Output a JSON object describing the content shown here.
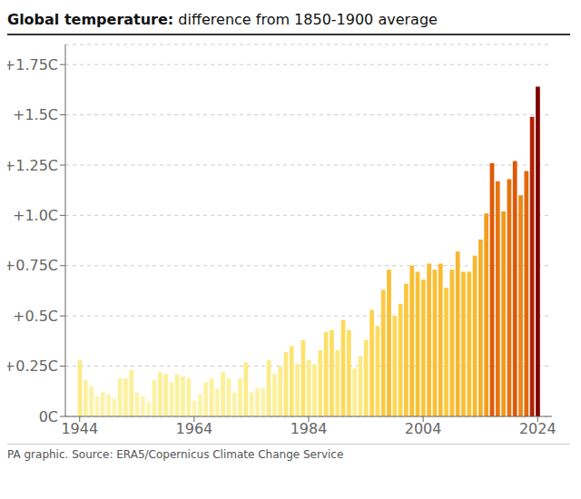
{
  "chart_data": {
    "type": "bar",
    "title": "Global temperature:",
    "subtitle": "difference from 1850-1900 average",
    "annotations": [
      "PA graphic. Source: ERA5/Copernicus Climate Change Service"
    ],
    "x": [
      1944,
      1945,
      1946,
      1947,
      1948,
      1949,
      1950,
      1951,
      1952,
      1953,
      1954,
      1955,
      1956,
      1957,
      1958,
      1959,
      1960,
      1961,
      1962,
      1963,
      1964,
      1965,
      1966,
      1967,
      1968,
      1969,
      1970,
      1971,
      1972,
      1973,
      1974,
      1975,
      1976,
      1977,
      1978,
      1979,
      1980,
      1981,
      1982,
      1983,
      1984,
      1985,
      1986,
      1987,
      1988,
      1989,
      1990,
      1991,
      1992,
      1993,
      1994,
      1995,
      1996,
      1997,
      1998,
      1999,
      2000,
      2001,
      2002,
      2003,
      2004,
      2005,
      2006,
      2007,
      2008,
      2009,
      2010,
      2011,
      2012,
      2013,
      2014,
      2015,
      2016,
      2017,
      2018,
      2019,
      2020,
      2021,
      2022,
      2023,
      2024
    ],
    "values": [
      0.28,
      0.18,
      0.15,
      0.1,
      0.12,
      0.11,
      0.09,
      0.19,
      0.19,
      0.23,
      0.12,
      0.1,
      0.07,
      0.18,
      0.22,
      0.21,
      0.17,
      0.21,
      0.2,
      0.19,
      0.08,
      0.11,
      0.17,
      0.19,
      0.14,
      0.22,
      0.19,
      0.12,
      0.19,
      0.27,
      0.12,
      0.14,
      0.14,
      0.28,
      0.21,
      0.25,
      0.32,
      0.35,
      0.26,
      0.38,
      0.28,
      0.26,
      0.33,
      0.42,
      0.43,
      0.33,
      0.48,
      0.43,
      0.24,
      0.3,
      0.38,
      0.53,
      0.45,
      0.63,
      0.73,
      0.5,
      0.56,
      0.66,
      0.75,
      0.72,
      0.68,
      0.76,
      0.73,
      0.76,
      0.64,
      0.73,
      0.82,
      0.72,
      0.72,
      0.8,
      0.88,
      1.01,
      1.26,
      1.17,
      1.02,
      1.18,
      1.27,
      1.1,
      1.22,
      1.49,
      1.64
    ],
    "colors": [
      "#fceb88",
      "#fcf1a0",
      "#fcf2a5",
      "#fcf4ae",
      "#fcf3aa",
      "#fcf3ac",
      "#fcf4b0",
      "#fcf19e",
      "#fcf19e",
      "#fcef96",
      "#fcf3aa",
      "#fcf4ae",
      "#fcf5b3",
      "#fcf1a0",
      "#fcf098",
      "#fcf09a",
      "#fcf2a2",
      "#fcf09a",
      "#fcf19c",
      "#fcf19e",
      "#fcf4b2",
      "#fcf3ac",
      "#fcf2a2",
      "#fcf19e",
      "#fcf3a7",
      "#fcf098",
      "#fcf19e",
      "#fcf3aa",
      "#fcf19e",
      "#fcec8b",
      "#fcf3aa",
      "#fcf3a7",
      "#fcf3a7",
      "#fceb88",
      "#fcf09a",
      "#fced90",
      "#fde87d",
      "#fde575",
      "#fced8e",
      "#fde36d",
      "#fceb88",
      "#fced8e",
      "#fde77a",
      "#fddf66",
      "#fdde64",
      "#fde77a",
      "#fed95a",
      "#fdde64",
      "#fcee93",
      "#fce983",
      "#fde36d",
      "#fed451",
      "#fddc60",
      "#fcca41",
      "#fabf33",
      "#fed756",
      "#fed24b",
      "#fcc73c",
      "#f9bd31",
      "#fac034",
      "#fbc539",
      "#f9bc30",
      "#fabf33",
      "#f9bc30",
      "#fcc93f",
      "#fabf33",
      "#f8b62c",
      "#fac034",
      "#fac034",
      "#f8b82e",
      "#f6af28",
      "#f49c1c",
      "#df5a08",
      "#e9750d",
      "#f3991b",
      "#e8720c",
      "#de5707",
      "#ef8614",
      "#e46709",
      "#b42003",
      "#7d0501"
    ],
    "xlim": [
      1941.5,
      2026.5
    ],
    "xticks": [
      1944,
      1964,
      1984,
      2004,
      2024
    ],
    "ylim": [
      0,
      1.85
    ],
    "yticks": [
      {
        "value": 0,
        "label": "0C"
      },
      {
        "value": 0.25,
        "label": "+0.25C"
      },
      {
        "value": 0.5,
        "label": "+0.5C"
      },
      {
        "value": 0.75,
        "label": "+0.75C"
      },
      {
        "value": 1.0,
        "label": "+1.0C"
      },
      {
        "value": 1.25,
        "label": "+1.25C"
      },
      {
        "value": 1.5,
        "label": "+1.5C"
      },
      {
        "value": 1.75,
        "label": "+1.75C"
      }
    ],
    "grid": true
  }
}
